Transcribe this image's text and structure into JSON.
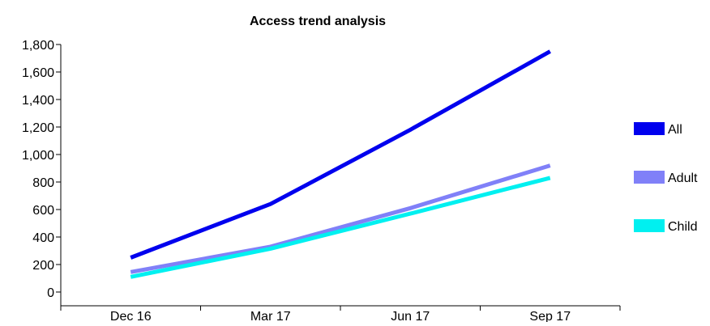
{
  "chart_data": {
    "type": "line",
    "title": "Access trend analysis",
    "xlabel": "",
    "ylabel": "",
    "categories": [
      "Dec 16",
      "Mar 17",
      "Jun 17",
      "Sep 17"
    ],
    "ylim": [
      0,
      1800
    ],
    "yticks": [
      0,
      200,
      400,
      600,
      800,
      1000,
      1200,
      1400,
      1600,
      1800
    ],
    "ytick_labels": [
      "0",
      "200",
      "400",
      "600",
      "800",
      "1,000",
      "1,200",
      "1,400",
      "1,600",
      "1,800"
    ],
    "grid": false,
    "legend_position": "right",
    "series": [
      {
        "name": "All",
        "color": "#0000ee",
        "values": [
          250,
          640,
          1180,
          1750
        ]
      },
      {
        "name": "Adult",
        "color": "#8080f8",
        "values": [
          145,
          330,
          610,
          920
        ]
      },
      {
        "name": "Child",
        "color": "#00f0f0",
        "values": [
          110,
          315,
          570,
          830
        ]
      }
    ]
  }
}
